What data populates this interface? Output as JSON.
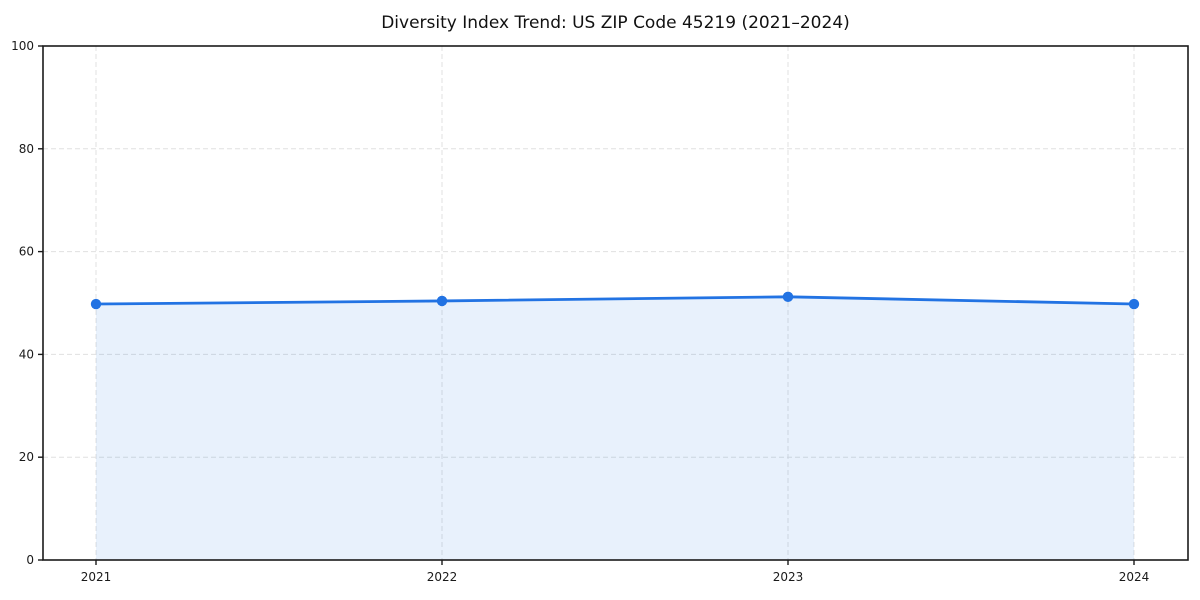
{
  "chart_data": {
    "type": "area",
    "title": "Diversity Index Trend: US ZIP Code 45219 (2021–2024)",
    "categories": [
      "2021",
      "2022",
      "2023",
      "2024"
    ],
    "series": [
      {
        "name": "Diversity Index",
        "values": [
          49.8,
          50.4,
          51.2,
          49.8
        ]
      }
    ],
    "xlabel": "",
    "ylabel": "",
    "ylim": [
      0,
      100
    ],
    "yticks": [
      0,
      20,
      40,
      60,
      80,
      100
    ],
    "grid": "dashed, both axes",
    "legend_position": "none",
    "marker": "circle",
    "colors": {
      "line": "#2273e3",
      "fill_tint": "#e9f1fc",
      "grid": "#e0e0e0",
      "axis": "#1a1a1a",
      "background": "#ffffff"
    }
  }
}
